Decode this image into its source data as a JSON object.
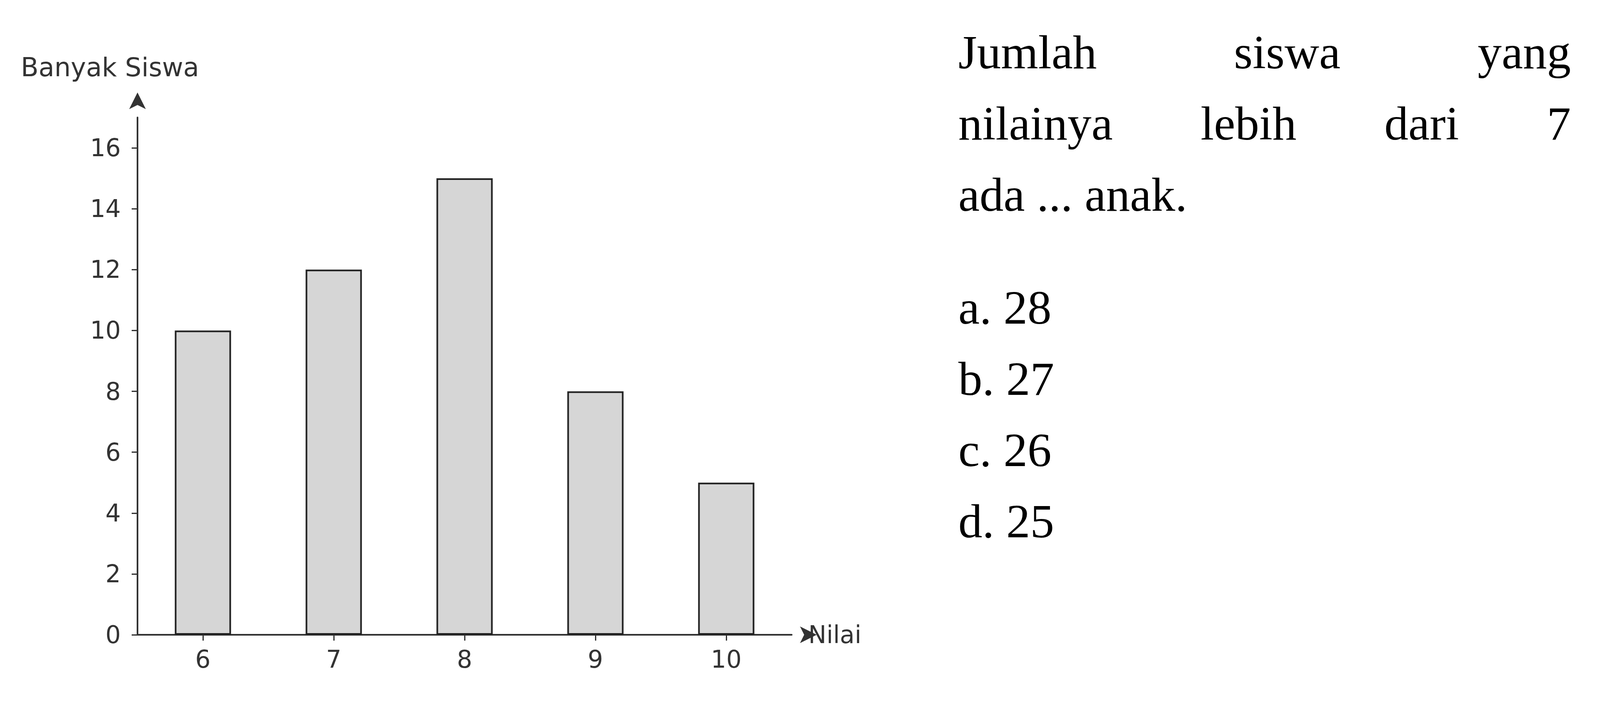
{
  "chart_data": {
    "type": "bar",
    "x_label": "Nilai",
    "y_label": "Banyak Siswa",
    "categories": [
      "6",
      "7",
      "8",
      "9",
      "10"
    ],
    "values": [
      10,
      12,
      15,
      8,
      5
    ],
    "color": "#d6d6d6",
    "ylim": [
      0,
      17
    ],
    "yticks": [
      0,
      2,
      4,
      6,
      8,
      10,
      12,
      14,
      16
    ],
    "grid": false
  },
  "question": {
    "lines": [
      "Jumlah siswa yang",
      "nilainya lebih dari 7",
      "ada ... anak."
    ],
    "options": [
      "a. 28",
      "b. 27",
      "c. 26",
      "d. 25"
    ]
  }
}
